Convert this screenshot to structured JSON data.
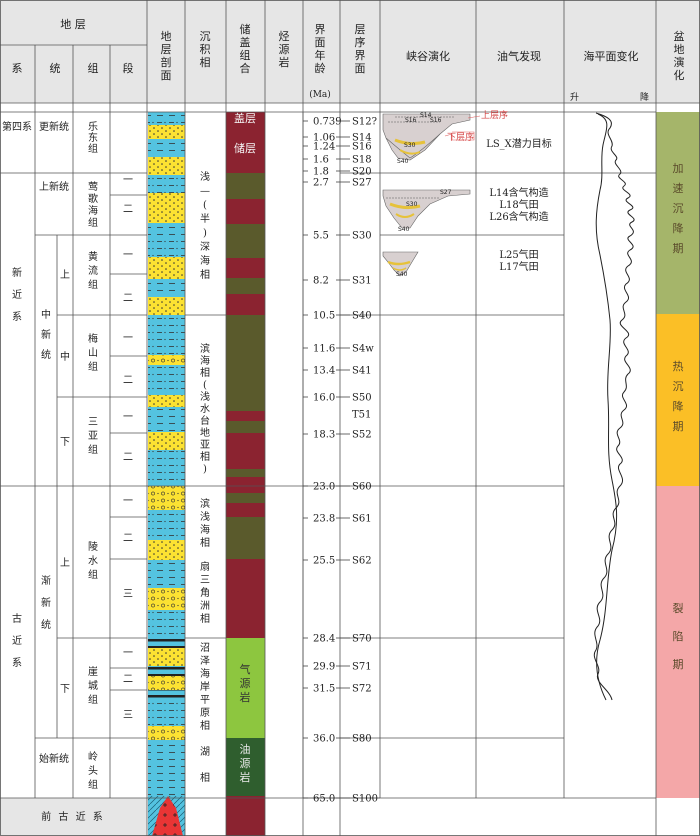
{
  "headers": {
    "strata": "地 层",
    "system": "系",
    "series": "统",
    "group": "组",
    "member": "段",
    "profile": "地层剖面",
    "facies": "沉积相",
    "reservoir_cap": "储盖组合",
    "source_rock": "烃源岩",
    "boundary_age": "界面年龄",
    "age_unit": "(Ma)",
    "seq_boundary": "层序界面",
    "canyon": "峡谷演化",
    "oil_gas": "油气发现",
    "sea_level": "海平面变化",
    "rise": "升",
    "fall": "降",
    "basin": "盆地演化"
  },
  "systems": [
    "第四系",
    "新近系",
    "古近系",
    "前 古 近 系"
  ],
  "series": [
    "更新统",
    "上新统",
    "中新统",
    "渐新统",
    "始新统"
  ],
  "subseries": [
    "上",
    "中",
    "下",
    "上",
    "下"
  ],
  "groups": [
    "乐东组",
    "莺歌海组",
    "黄流组",
    "梅山组",
    "三亚组",
    "陵水组",
    "崖城组",
    "岭头组"
  ],
  "members": [
    "一",
    "二",
    "一",
    "二",
    "一",
    "二",
    "一",
    "二",
    "一",
    "二",
    "三",
    "一",
    "二",
    "三"
  ],
  "facies": [
    "浅—(半)深海相",
    "滨海相(浅水台地亚相)",
    "滨浅海相",
    "扇三角洲相",
    "沼泽海岸平原相",
    "湖 相"
  ],
  "reservoir_labels": [
    "盖层",
    "储层"
  ],
  "source_labels": [
    "气源岩",
    "油源岩"
  ],
  "ages": [
    "0.739",
    "1.06",
    "1.24",
    "1.6",
    "1.8",
    "2.7",
    "5.5",
    "8.2",
    "10.5",
    "11.6",
    "13.4",
    "16.0",
    "18.3",
    "23.0",
    "23.8",
    "25.5",
    "28.4",
    "29.9",
    "31.5",
    "36.0",
    "65.0"
  ],
  "sequences": [
    "S12?",
    "S14",
    "S16",
    "S18",
    "S20",
    "S27",
    "S30",
    "S31",
    "S40",
    "S4w",
    "S41",
    "S50",
    "T51",
    "S52",
    "S60",
    "S61",
    "S62",
    "S70",
    "S71",
    "S72",
    "S80",
    "S100"
  ],
  "canyon_labels": {
    "upper": "上层序",
    "lower": "下层序",
    "s14": "S14",
    "s16": "S16",
    "s30": "S30",
    "s40": "S40",
    "s27": "S27",
    "s16b": "S16"
  },
  "discoveries": [
    "LS_X潜力目标",
    "L14含气构造",
    "L18气田",
    "L26含气构造",
    "L25气田",
    "L17气田"
  ],
  "basin_stages": [
    "加速沉降期",
    "热沉降期",
    "裂陷期"
  ],
  "colors": {
    "yellow": "#fce232",
    "blue": "#54c3e0",
    "olive": "#5a5a2c",
    "maroon": "#8b2330",
    "green": "#8dc63f",
    "darkgreen": "#2f5e2e",
    "basin_green": "#a5b56a",
    "basin_orange": "#fbbf26",
    "basin_pink": "#f4a7a8",
    "granite": "#e83535"
  }
}
